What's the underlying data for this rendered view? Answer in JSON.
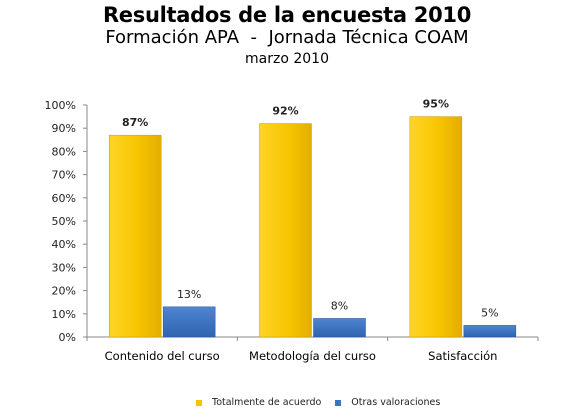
{
  "title": "Resultados de la encuesta 2010",
  "subtitle": "Formación APA  -  Jornada Técnica COAM",
  "date_line": "marzo 2010",
  "colors": {
    "series1": "#F5C400",
    "series2": "#3A73C0"
  },
  "chart_data": {
    "type": "bar",
    "categories": [
      "Contenido del curso",
      "Metodología del curso",
      "Satisfacción"
    ],
    "series": [
      {
        "name": "Totalmente de acuerdo",
        "values": [
          87,
          92,
          95
        ],
        "labels": [
          "87%",
          "92%",
          "95%"
        ]
      },
      {
        "name": "Otras valoraciones",
        "values": [
          13,
          8,
          5
        ],
        "labels": [
          "13%",
          "8%",
          "5%"
        ]
      }
    ],
    "yticks": [
      "0%",
      "10%",
      "20%",
      "30%",
      "40%",
      "50%",
      "60%",
      "70%",
      "80%",
      "90%",
      "100%"
    ],
    "ylim": [
      0,
      100
    ],
    "grid": false,
    "legend_position": "bottom"
  }
}
